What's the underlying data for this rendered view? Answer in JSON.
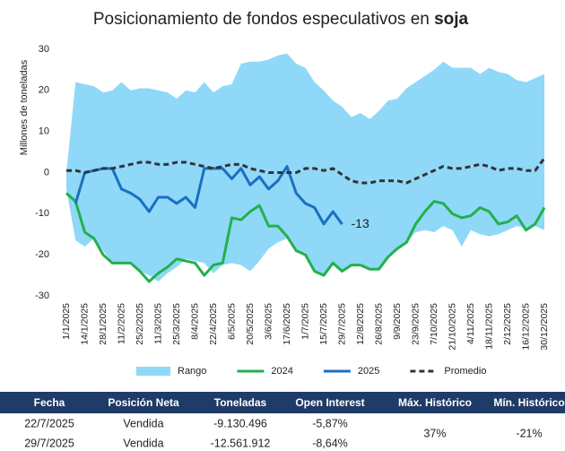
{
  "chart_data": {
    "type": "line",
    "title": "Posicionamiento de fondos especulativos en",
    "title_emphasis": "soja",
    "y_label": "Millones de toneladas",
    "ylim": [
      -30,
      30
    ],
    "yticks": [
      -30,
      -20,
      -10,
      0,
      10,
      20,
      30
    ],
    "grid": false,
    "legend": "bottom",
    "categories": [
      "1/1/2025",
      null,
      "14/1/2025",
      null,
      "28/1/2025",
      null,
      "11/2/2025",
      null,
      "25/2/2025",
      null,
      "11/3/2025",
      null,
      "25/3/2025",
      null,
      "8/4/2025",
      null,
      "22/4/2025",
      null,
      "6/5/2025",
      null,
      "20/5/2025",
      null,
      "3/6/2025",
      null,
      "17/6/2025",
      null,
      "1/7/2025",
      null,
      "15/7/2025",
      null,
      "29/7/2025",
      null,
      "12/8/2025",
      null,
      "26/8/2025",
      null,
      "9/9/2025",
      null,
      "23/9/2025",
      null,
      "7/10/2025",
      null,
      "21/10/2025",
      null,
      "4/11/2025",
      null,
      "18/11/2025",
      null,
      "2/12/2025",
      null,
      "16/12/2025",
      null,
      "30/12/2025"
    ],
    "series": [
      {
        "name": "Rango",
        "type": "area",
        "color": "#8fd8f8",
        "high": [
          0,
          22,
          21.5,
          21,
          19.5,
          20,
          22,
          20,
          20.5,
          20.5,
          20,
          19.5,
          18,
          20,
          19.5,
          22,
          19.5,
          21,
          21.5,
          26.5,
          27,
          27,
          27.5,
          28.5,
          29,
          26.5,
          25.5,
          22,
          20,
          17.5,
          16,
          13.5,
          14.5,
          13,
          15,
          17.5,
          18,
          20.5,
          22,
          23.5,
          25,
          27,
          25.5,
          25.5,
          25.5,
          24,
          25.5,
          24.5,
          24,
          22.5,
          22,
          23,
          24
        ],
        "low": [
          -4,
          -16.5,
          -18,
          -16,
          -19,
          -22,
          -22,
          -22,
          -24,
          -25,
          -26.5,
          -24.5,
          -23,
          -21,
          -21.5,
          -22,
          -24.5,
          -22.5,
          -22,
          -22.5,
          -24,
          -21.5,
          -18.5,
          -17,
          -16,
          -19,
          -19.5,
          -24,
          -25,
          -22,
          -24,
          -22.5,
          -22.5,
          -23.5,
          -23.5,
          -20.5,
          -18.5,
          -17,
          -14.5,
          -14,
          -14.5,
          -13,
          -14,
          -18,
          -14,
          -15,
          -15.5,
          -15,
          -14,
          -13,
          -13.5,
          -13,
          -14
        ]
      },
      {
        "name": "2024",
        "type": "line",
        "color": "#22b14c",
        "values": [
          -5,
          -7,
          -14.5,
          -16,
          -20,
          -22,
          -22,
          -22,
          -24,
          -26.5,
          -24.5,
          -23,
          -21,
          -21.5,
          -22,
          -25,
          -22.5,
          -22,
          -11,
          -11.5,
          -9.5,
          -8,
          -13,
          -13,
          -15.5,
          -19,
          -20,
          -24,
          -25,
          -22,
          -24,
          -22.5,
          -22.5,
          -23.5,
          -23.5,
          -20.5,
          -18.5,
          -17,
          -12.5,
          -9.5,
          -7,
          -7.5,
          -10,
          -11,
          -10.5,
          -8.5,
          -9.5,
          -12.5,
          -12,
          -10.5,
          -14,
          -12.5,
          -8.5
        ]
      },
      {
        "name": "2025",
        "type": "line",
        "color": "#1a6fc0",
        "values": [
          null,
          -7.5,
          0,
          0.5,
          1,
          1,
          -4,
          -5,
          -6.5,
          -9.5,
          -6,
          -6,
          -7.5,
          -6,
          -8.5,
          1,
          1,
          1,
          -1.5,
          1,
          -3,
          -1,
          -4,
          -2,
          1.5,
          -5,
          -7.5,
          -8.5,
          -12.5,
          -9.5,
          -12.56,
          null,
          null,
          null,
          null,
          null,
          null,
          null,
          null,
          null,
          null,
          null,
          null,
          null,
          null,
          null,
          null,
          null,
          null,
          null,
          null,
          null,
          null
        ],
        "value_labels": [
          null,
          null,
          null,
          null,
          null,
          null,
          null,
          null,
          null,
          null,
          null,
          null,
          null,
          null,
          null,
          null,
          null,
          null,
          null,
          null,
          null,
          null,
          null,
          null,
          null,
          null,
          null,
          null,
          null,
          null,
          "-13",
          null,
          null,
          null,
          null,
          null,
          null,
          null,
          null,
          null,
          null,
          null,
          null,
          null,
          null,
          null,
          null,
          null,
          null,
          null,
          null,
          null,
          null
        ]
      },
      {
        "name": "Promedio",
        "type": "dashed",
        "color": "#333333",
        "values": [
          0.5,
          0.5,
          0,
          0.5,
          1,
          1,
          1.5,
          2,
          2.5,
          2.5,
          2,
          2,
          2.5,
          2.5,
          2,
          1.5,
          1,
          1.5,
          2,
          2,
          1,
          0.5,
          0,
          0,
          0,
          0,
          1,
          1,
          0.5,
          1,
          -0.5,
          -2,
          -2.5,
          -2.5,
          -2,
          -2,
          -2,
          -2.5,
          -1.5,
          -0.5,
          0.5,
          1.5,
          1,
          1,
          1.5,
          2,
          1.5,
          0.5,
          1,
          1,
          0.5,
          0.5,
          3.5
        ]
      }
    ]
  },
  "table": {
    "columns": [
      "Fecha",
      "Posición Neta",
      "Toneladas",
      "Open Interest",
      "Máx. Histórico",
      "Mín. Histórico"
    ],
    "rows": [
      [
        "22/7/2025",
        "Vendida",
        "-9.130.496",
        "-5,87%"
      ],
      [
        "29/7/2025",
        "Vendida",
        "-12.561.912",
        "-8,64%"
      ]
    ],
    "max_historic": "37%",
    "min_historic": "-21%"
  }
}
